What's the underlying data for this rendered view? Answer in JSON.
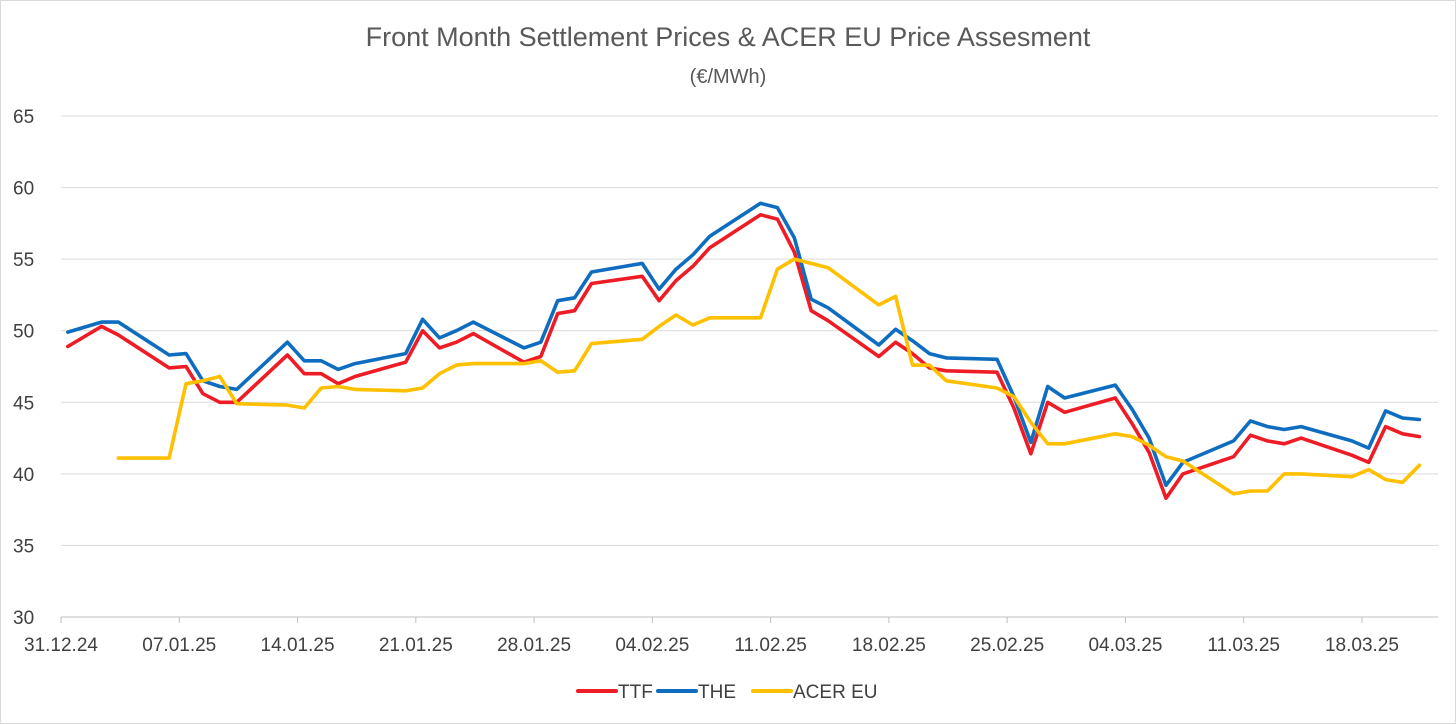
{
  "chart_data": {
    "type": "line",
    "title": "Front Month Settlement Prices & ACER EU Price Assesment",
    "subtitle": "(€/MWh)",
    "xlabel": "",
    "ylabel": "",
    "ylim": [
      30,
      65
    ],
    "yticks": [
      30,
      35,
      40,
      45,
      50,
      55,
      60,
      65
    ],
    "grid": true,
    "legend_position": "bottom-center",
    "x_ticks": [
      {
        "day": 0,
        "label": "31.12.24"
      },
      {
        "day": 7,
        "label": "07.01.25"
      },
      {
        "day": 14,
        "label": "14.01.25"
      },
      {
        "day": 21,
        "label": "21.01.25"
      },
      {
        "day": 28,
        "label": "28.01.25"
      },
      {
        "day": 35,
        "label": "04.02.25"
      },
      {
        "day": 42,
        "label": "11.02.25"
      },
      {
        "day": 49,
        "label": "18.02.25"
      },
      {
        "day": 56,
        "label": "25.02.25"
      },
      {
        "day": 63,
        "label": "04.03.25"
      },
      {
        "day": 70,
        "label": "11.03.25"
      },
      {
        "day": 77,
        "label": "18.03.25"
      }
    ],
    "x_range_days": [
      0,
      81.5
    ],
    "series": [
      {
        "name": "TTF",
        "color": "#ee1c25",
        "points": [
          [
            0.4,
            48.9
          ],
          [
            2.4,
            50.3
          ],
          [
            3.4,
            49.7
          ],
          [
            6.4,
            47.4
          ],
          [
            7.4,
            47.5
          ],
          [
            8.4,
            45.6
          ],
          [
            9.4,
            45.0
          ],
          [
            10.4,
            45.0
          ],
          [
            13.4,
            48.3
          ],
          [
            14.4,
            47.0
          ],
          [
            15.4,
            47.0
          ],
          [
            16.4,
            46.3
          ],
          [
            17.4,
            46.8
          ],
          [
            20.4,
            47.8
          ],
          [
            21.4,
            50.0
          ],
          [
            22.4,
            48.8
          ],
          [
            23.4,
            49.2
          ],
          [
            24.4,
            49.8
          ],
          [
            27.4,
            47.8
          ],
          [
            28.4,
            48.2
          ],
          [
            29.4,
            51.2
          ],
          [
            30.4,
            51.4
          ],
          [
            31.4,
            53.3
          ],
          [
            34.4,
            53.8
          ],
          [
            35.4,
            52.1
          ],
          [
            36.4,
            53.5
          ],
          [
            37.4,
            54.5
          ],
          [
            38.4,
            55.8
          ],
          [
            41.4,
            58.1
          ],
          [
            42.4,
            57.8
          ],
          [
            43.4,
            55.5
          ],
          [
            44.4,
            51.4
          ],
          [
            45.4,
            50.7
          ],
          [
            48.4,
            48.2
          ],
          [
            49.4,
            49.2
          ],
          [
            50.4,
            48.4
          ],
          [
            51.4,
            47.4
          ],
          [
            52.4,
            47.2
          ],
          [
            55.4,
            47.1
          ],
          [
            56.4,
            44.6
          ],
          [
            57.4,
            41.4
          ],
          [
            58.4,
            45.0
          ],
          [
            59.4,
            44.3
          ],
          [
            62.4,
            45.3
          ],
          [
            63.4,
            43.5
          ],
          [
            64.4,
            41.5
          ],
          [
            65.4,
            38.3
          ],
          [
            66.4,
            40.0
          ],
          [
            69.4,
            41.2
          ],
          [
            70.4,
            42.7
          ],
          [
            71.4,
            42.3
          ],
          [
            72.4,
            42.1
          ],
          [
            73.4,
            42.5
          ],
          [
            76.4,
            41.3
          ],
          [
            77.4,
            40.8
          ],
          [
            78.4,
            43.3
          ],
          [
            79.4,
            42.8
          ],
          [
            80.4,
            42.6
          ]
        ]
      },
      {
        "name": "THE",
        "color": "#0f6dbf",
        "points": [
          [
            0.4,
            49.9
          ],
          [
            2.4,
            50.6
          ],
          [
            3.4,
            50.6
          ],
          [
            6.4,
            48.3
          ],
          [
            7.4,
            48.4
          ],
          [
            8.4,
            46.5
          ],
          [
            9.4,
            46.1
          ],
          [
            10.4,
            45.9
          ],
          [
            13.4,
            49.2
          ],
          [
            14.4,
            47.9
          ],
          [
            15.4,
            47.9
          ],
          [
            16.4,
            47.3
          ],
          [
            17.4,
            47.7
          ],
          [
            20.4,
            48.4
          ],
          [
            21.4,
            50.8
          ],
          [
            22.4,
            49.5
          ],
          [
            23.4,
            50.0
          ],
          [
            24.4,
            50.6
          ],
          [
            27.4,
            48.8
          ],
          [
            28.4,
            49.2
          ],
          [
            29.4,
            52.1
          ],
          [
            30.4,
            52.3
          ],
          [
            31.4,
            54.1
          ],
          [
            34.4,
            54.7
          ],
          [
            35.4,
            52.9
          ],
          [
            36.4,
            54.3
          ],
          [
            37.4,
            55.3
          ],
          [
            38.4,
            56.6
          ],
          [
            41.4,
            58.9
          ],
          [
            42.4,
            58.6
          ],
          [
            43.4,
            56.5
          ],
          [
            44.4,
            52.2
          ],
          [
            45.4,
            51.6
          ],
          [
            48.4,
            49.0
          ],
          [
            49.4,
            50.1
          ],
          [
            50.4,
            49.3
          ],
          [
            51.4,
            48.4
          ],
          [
            52.4,
            48.1
          ],
          [
            55.4,
            48.0
          ],
          [
            56.4,
            45.4
          ],
          [
            57.4,
            42.2
          ],
          [
            58.4,
            46.1
          ],
          [
            59.4,
            45.3
          ],
          [
            62.4,
            46.2
          ],
          [
            63.4,
            44.5
          ],
          [
            64.4,
            42.5
          ],
          [
            65.4,
            39.2
          ],
          [
            66.4,
            40.8
          ],
          [
            69.4,
            42.3
          ],
          [
            70.4,
            43.7
          ],
          [
            71.4,
            43.3
          ],
          [
            72.4,
            43.1
          ],
          [
            73.4,
            43.3
          ],
          [
            76.4,
            42.3
          ],
          [
            77.4,
            41.8
          ],
          [
            78.4,
            44.4
          ],
          [
            79.4,
            43.9
          ],
          [
            80.4,
            43.8
          ]
        ]
      },
      {
        "name": "ACER EU",
        "color": "#ffc000",
        "points": [
          [
            3.4,
            41.1
          ],
          [
            6.4,
            41.1
          ],
          [
            7.4,
            46.3
          ],
          [
            8.4,
            46.5
          ],
          [
            9.4,
            46.8
          ],
          [
            10.4,
            44.9
          ],
          [
            13.4,
            44.8
          ],
          [
            14.4,
            44.6
          ],
          [
            15.4,
            46.0
          ],
          [
            16.4,
            46.1
          ],
          [
            17.4,
            45.9
          ],
          [
            20.4,
            45.8
          ],
          [
            21.4,
            46.0
          ],
          [
            22.4,
            47.0
          ],
          [
            23.4,
            47.6
          ],
          [
            24.4,
            47.7
          ],
          [
            27.4,
            47.7
          ],
          [
            28.4,
            47.9
          ],
          [
            29.4,
            47.1
          ],
          [
            30.4,
            47.2
          ],
          [
            31.4,
            49.1
          ],
          [
            34.4,
            49.4
          ],
          [
            35.4,
            50.3
          ],
          [
            36.4,
            51.1
          ],
          [
            37.4,
            50.4
          ],
          [
            38.4,
            50.9
          ],
          [
            41.4,
            50.9
          ],
          [
            42.4,
            54.3
          ],
          [
            43.4,
            55.0
          ],
          [
            44.4,
            54.7
          ],
          [
            45.4,
            54.4
          ],
          [
            48.4,
            51.8
          ],
          [
            49.4,
            52.4
          ],
          [
            50.4,
            47.6
          ],
          [
            51.4,
            47.6
          ],
          [
            52.4,
            46.5
          ],
          [
            55.4,
            46.0
          ],
          [
            56.4,
            45.4
          ],
          [
            57.4,
            43.6
          ],
          [
            58.4,
            42.1
          ],
          [
            59.4,
            42.1
          ],
          [
            62.4,
            42.8
          ],
          [
            63.4,
            42.6
          ],
          [
            64.4,
            42.0
          ],
          [
            65.4,
            41.2
          ],
          [
            66.4,
            40.9
          ],
          [
            69.4,
            38.6
          ],
          [
            70.4,
            38.8
          ],
          [
            71.4,
            38.8
          ],
          [
            72.4,
            40.0
          ],
          [
            73.4,
            40.0
          ],
          [
            76.4,
            39.8
          ],
          [
            77.4,
            40.3
          ],
          [
            78.4,
            39.6
          ],
          [
            79.4,
            39.4
          ],
          [
            80.4,
            40.6
          ]
        ]
      }
    ]
  }
}
